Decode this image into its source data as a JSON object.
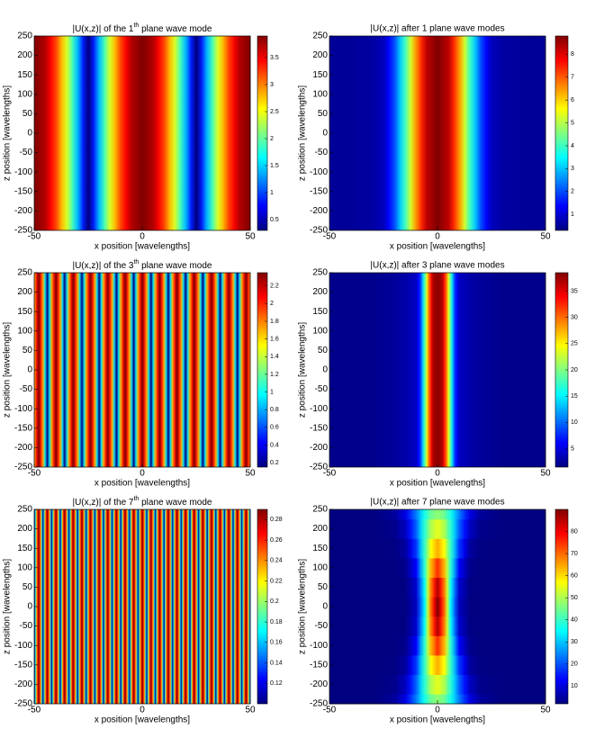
{
  "chart_data": [
    {
      "type": "heatmap",
      "title": [
        "|U(x,z)| of the 1",
        "th",
        " plane wave mode"
      ],
      "xlabel": "x position [wavelengths]",
      "ylabel": "z position [wavelengths]",
      "xlim": [
        -50,
        50
      ],
      "xticks": [
        -50,
        0,
        50
      ],
      "ylim": [
        -250,
        250
      ],
      "yticks": [
        -250,
        -200,
        -150,
        -100,
        -50,
        0,
        50,
        100,
        150,
        200,
        250
      ],
      "clim": [
        0.3,
        3.9
      ],
      "cticks": [
        0.5,
        1,
        1.5,
        2,
        2.5,
        3,
        3.5
      ],
      "x": [
        -50,
        -45,
        -40,
        -35,
        -30,
        -25,
        -20,
        -15,
        -10,
        -5,
        0,
        5,
        10,
        15,
        20,
        25,
        30,
        35,
        40,
        45,
        50
      ],
      "values": [
        3.9,
        3.72,
        3.21,
        2.42,
        1.41,
        0.3,
        1.41,
        2.42,
        3.21,
        3.72,
        3.9,
        3.72,
        3.21,
        2.42,
        1.41,
        0.3,
        1.41,
        2.42,
        3.21,
        3.72,
        3.9
      ]
    },
    {
      "type": "heatmap",
      "title": "|U(x,z)| after 1 plane wave modes",
      "xlabel": "x position [wavelengths]",
      "ylabel": "z position [wavelengths]",
      "xlim": [
        -50,
        50
      ],
      "xticks": [
        -50,
        0,
        50
      ],
      "ylim": [
        -250,
        250
      ],
      "yticks": [
        -250,
        -200,
        -150,
        -100,
        -50,
        0,
        50,
        100,
        150,
        200,
        250
      ],
      "clim": [
        0.3,
        8.8
      ],
      "cticks": [
        1,
        2,
        3,
        4,
        5,
        6,
        7,
        8
      ],
      "x": [
        -50,
        -40,
        -30,
        -25,
        -20,
        -15,
        -10,
        -5,
        0,
        5,
        10,
        15,
        20,
        25,
        30,
        40,
        50
      ],
      "values": [
        0.5,
        0.5,
        0.6,
        0.8,
        2,
        4,
        6.5,
        8.3,
        8.8,
        8.3,
        6.5,
        4,
        2,
        0.8,
        0.6,
        0.5,
        0.5
      ]
    },
    {
      "type": "heatmap",
      "title": [
        "|U(x,z)| of the 3",
        "th",
        " plane wave mode"
      ],
      "xlabel": "x position [wavelengths]",
      "ylabel": "z position [wavelengths]",
      "xlim": [
        -50,
        50
      ],
      "xticks": [
        -50,
        0,
        50
      ],
      "ylim": [
        -250,
        250
      ],
      "yticks": [
        -250,
        -200,
        -150,
        -100,
        -50,
        0,
        50,
        100,
        150,
        200,
        250
      ],
      "clim": [
        0.15,
        2.35
      ],
      "cticks": [
        0.2,
        0.4,
        0.6,
        0.8,
        1,
        1.2,
        1.4,
        1.6,
        1.8,
        2,
        2.2
      ],
      "x": [
        -50,
        -48,
        -46,
        -44,
        -42,
        -40,
        -38,
        -36,
        -34,
        -32,
        -30,
        -28,
        -26,
        -24,
        -22,
        -20,
        -18,
        -16,
        -14,
        -12,
        -10,
        -8,
        -6,
        -4,
        -2,
        0,
        2,
        4,
        6,
        8,
        10,
        12,
        14,
        16,
        18,
        20,
        22,
        24,
        26,
        28,
        30,
        32,
        34,
        36,
        38,
        40,
        42,
        44,
        46,
        48,
        50
      ],
      "values": [
        1.71,
        2.35,
        1.71,
        0.15,
        1.71,
        2.35,
        1.71,
        0.15,
        1.71,
        2.35,
        1.71,
        0.15,
        1.71,
        2.35,
        1.71,
        0.15,
        1.71,
        2.35,
        1.71,
        0.15,
        1.71,
        2.35,
        1.71,
        0.15,
        1.71,
        2.35,
        1.71,
        0.15,
        1.71,
        2.35,
        1.71,
        0.15,
        1.71,
        2.35,
        1.71,
        0.15,
        1.71,
        2.35,
        1.71,
        0.15,
        1.71,
        2.35,
        1.71,
        0.15,
        1.71,
        2.35,
        1.71,
        0.15,
        1.71,
        2.35,
        1.71
      ]
    },
    {
      "type": "heatmap",
      "title": "|U(x,z)| after 3 plane wave modes",
      "xlabel": "x position [wavelengths]",
      "ylabel": "z position [wavelengths]",
      "xlim": [
        -50,
        50
      ],
      "xticks": [
        -50,
        0,
        50
      ],
      "ylim": [
        -250,
        250
      ],
      "yticks": [
        -250,
        -200,
        -150,
        -100,
        -50,
        0,
        50,
        100,
        150,
        200,
        250
      ],
      "clim": [
        1.5,
        38.5
      ],
      "cticks": [
        5,
        10,
        15,
        20,
        25,
        30,
        35
      ],
      "x": [
        -50,
        -30,
        -20,
        -15,
        -10,
        -8,
        -6,
        -4,
        -2,
        0,
        2,
        4,
        6,
        8,
        10,
        15,
        20,
        30,
        50
      ],
      "values": [
        2,
        2,
        2.5,
        3,
        4,
        8,
        18,
        30,
        37,
        38,
        37,
        30,
        18,
        8,
        4,
        3,
        2.5,
        2,
        2
      ]
    },
    {
      "type": "heatmap",
      "title": [
        "|U(x,z)| of the 7",
        "th",
        " plane wave mode"
      ],
      "xlabel": "x position [wavelengths]",
      "ylabel": "z position [wavelengths]",
      "xlim": [
        -50,
        50
      ],
      "xticks": [
        -50,
        0,
        50
      ],
      "ylim": [
        -250,
        250
      ],
      "yticks": [
        -250,
        -200,
        -150,
        -100,
        -50,
        0,
        50,
        100,
        150,
        200,
        250
      ],
      "clim": [
        0.1,
        0.29
      ],
      "cticks": [
        0.12,
        0.14,
        0.16,
        0.18,
        0.2,
        0.22,
        0.24,
        0.26,
        0.28
      ],
      "x": [
        -50,
        -49,
        -48,
        -47,
        -46,
        -45,
        -44,
        -43,
        -42,
        -41,
        -40,
        -39,
        -38,
        -37,
        -36,
        -35,
        -34,
        -33,
        -32,
        -31,
        -30,
        -29,
        -28,
        -27,
        -26,
        -25,
        -24,
        -23,
        -22,
        -21,
        -20,
        -19,
        -18,
        -17,
        -16,
        -15,
        -14,
        -13,
        -12,
        -11,
        -10,
        -9,
        -8,
        -7,
        -6,
        -5,
        -4,
        -3,
        -2,
        -1,
        0,
        1,
        2,
        3,
        4,
        5,
        6,
        7,
        8,
        9,
        10,
        11,
        12,
        13,
        14,
        15,
        16,
        17,
        18,
        19,
        20,
        21,
        22,
        23,
        24,
        25,
        26,
        27,
        28,
        29,
        30,
        31,
        32,
        33,
        34,
        35,
        36,
        37,
        38,
        39,
        40,
        41,
        42,
        43,
        44,
        45,
        46,
        47,
        48,
        49,
        50
      ],
      "values": [
        0.1,
        0.234,
        0.29,
        0.234,
        0.1,
        0.234,
        0.29,
        0.234,
        0.1,
        0.234,
        0.29,
        0.234,
        0.1,
        0.234,
        0.29,
        0.234,
        0.1,
        0.234,
        0.29,
        0.234,
        0.1,
        0.234,
        0.29,
        0.234,
        0.1,
        0.234,
        0.29,
        0.234,
        0.1,
        0.234,
        0.29,
        0.234,
        0.1,
        0.234,
        0.29,
        0.234,
        0.1,
        0.234,
        0.29,
        0.234,
        0.1,
        0.234,
        0.29,
        0.234,
        0.1,
        0.234,
        0.29,
        0.234,
        0.1,
        0.234,
        0.29,
        0.234,
        0.1,
        0.234,
        0.29,
        0.234,
        0.1,
        0.234,
        0.29,
        0.234,
        0.1,
        0.234,
        0.29,
        0.234,
        0.1,
        0.234,
        0.29,
        0.234,
        0.1,
        0.234,
        0.29,
        0.234,
        0.1,
        0.234,
        0.29,
        0.234,
        0.1,
        0.234,
        0.29,
        0.234,
        0.1,
        0.234,
        0.29,
        0.234,
        0.1,
        0.234,
        0.29,
        0.234,
        0.1,
        0.234,
        0.29,
        0.234,
        0.1,
        0.234,
        0.29,
        0.234,
        0.1,
        0.234,
        0.29,
        0.234,
        0.1
      ]
    },
    {
      "type": "heatmap",
      "title": "|U(x,z)| after 7 plane wave modes",
      "xlabel": "x position [wavelengths]",
      "ylabel": "z position [wavelengths]",
      "xlim": [
        -50,
        50
      ],
      "xticks": [
        -50,
        0,
        50
      ],
      "ylim": [
        -250,
        250
      ],
      "yticks": [
        -250,
        -200,
        -150,
        -100,
        -50,
        0,
        50,
        100,
        150,
        200,
        250
      ],
      "clim": [
        2,
        90
      ],
      "cticks": [
        10,
        20,
        30,
        40,
        50,
        60,
        70,
        80
      ],
      "x": [
        -50,
        -30,
        -20,
        -15,
        -10,
        -6,
        -3,
        0,
        3,
        6,
        10,
        15,
        20,
        30,
        50
      ],
      "z": [
        -250,
        -200,
        -150,
        -100,
        -50,
        0,
        50,
        100,
        150,
        200,
        250
      ],
      "values": [
        [
          2,
          2,
          4.4,
          10.7,
          23.7,
          36.8,
          44.4,
          47.3,
          44.4,
          36.8,
          23.7,
          10.7,
          4.4,
          2,
          2
        ],
        [
          2,
          2,
          3,
          7.6,
          21.4,
          38.8,
          50.3,
          54.8,
          50.3,
          38.8,
          21.4,
          7.6,
          3,
          2,
          2
        ],
        [
          2,
          2,
          2.2,
          4.7,
          17.5,
          39.8,
          56.9,
          64.2,
          56.9,
          39.8,
          17.5,
          4.7,
          2.2,
          2,
          2
        ],
        [
          2,
          2,
          2,
          3,
          12.7,
          38.6,
          63.6,
          75.2,
          63.6,
          38.6,
          12.7,
          3,
          2,
          2,
          2
        ],
        [
          2,
          2,
          2,
          2.3,
          8.8,
          35.9,
          68.6,
          85.5,
          68.6,
          35.9,
          8.8,
          2.3,
          2,
          2,
          2
        ],
        [
          2,
          2,
          2,
          2.2,
          7.5,
          34.4,
          70.5,
          90,
          70.5,
          34.4,
          7.5,
          2.2,
          2,
          2,
          2
        ],
        [
          2,
          2,
          2,
          2.3,
          8.8,
          35.9,
          68.6,
          85.5,
          68.6,
          35.9,
          8.8,
          2.3,
          2,
          2,
          2
        ],
        [
          2,
          2,
          2,
          3,
          12.7,
          38.6,
          63.6,
          75.2,
          63.6,
          38.6,
          12.7,
          3,
          2,
          2,
          2
        ],
        [
          2,
          2,
          2.2,
          4.7,
          17.5,
          39.8,
          56.9,
          64.2,
          56.9,
          39.8,
          17.5,
          4.7,
          2.2,
          2,
          2
        ],
        [
          2,
          2,
          3,
          7.6,
          21.4,
          38.8,
          50.3,
          54.8,
          50.3,
          38.8,
          21.4,
          7.6,
          3,
          2,
          2
        ],
        [
          2,
          2,
          4.4,
          10.7,
          23.7,
          36.8,
          44.4,
          47.3,
          44.4,
          36.8,
          23.7,
          10.7,
          4.4,
          2,
          2
        ]
      ]
    }
  ]
}
